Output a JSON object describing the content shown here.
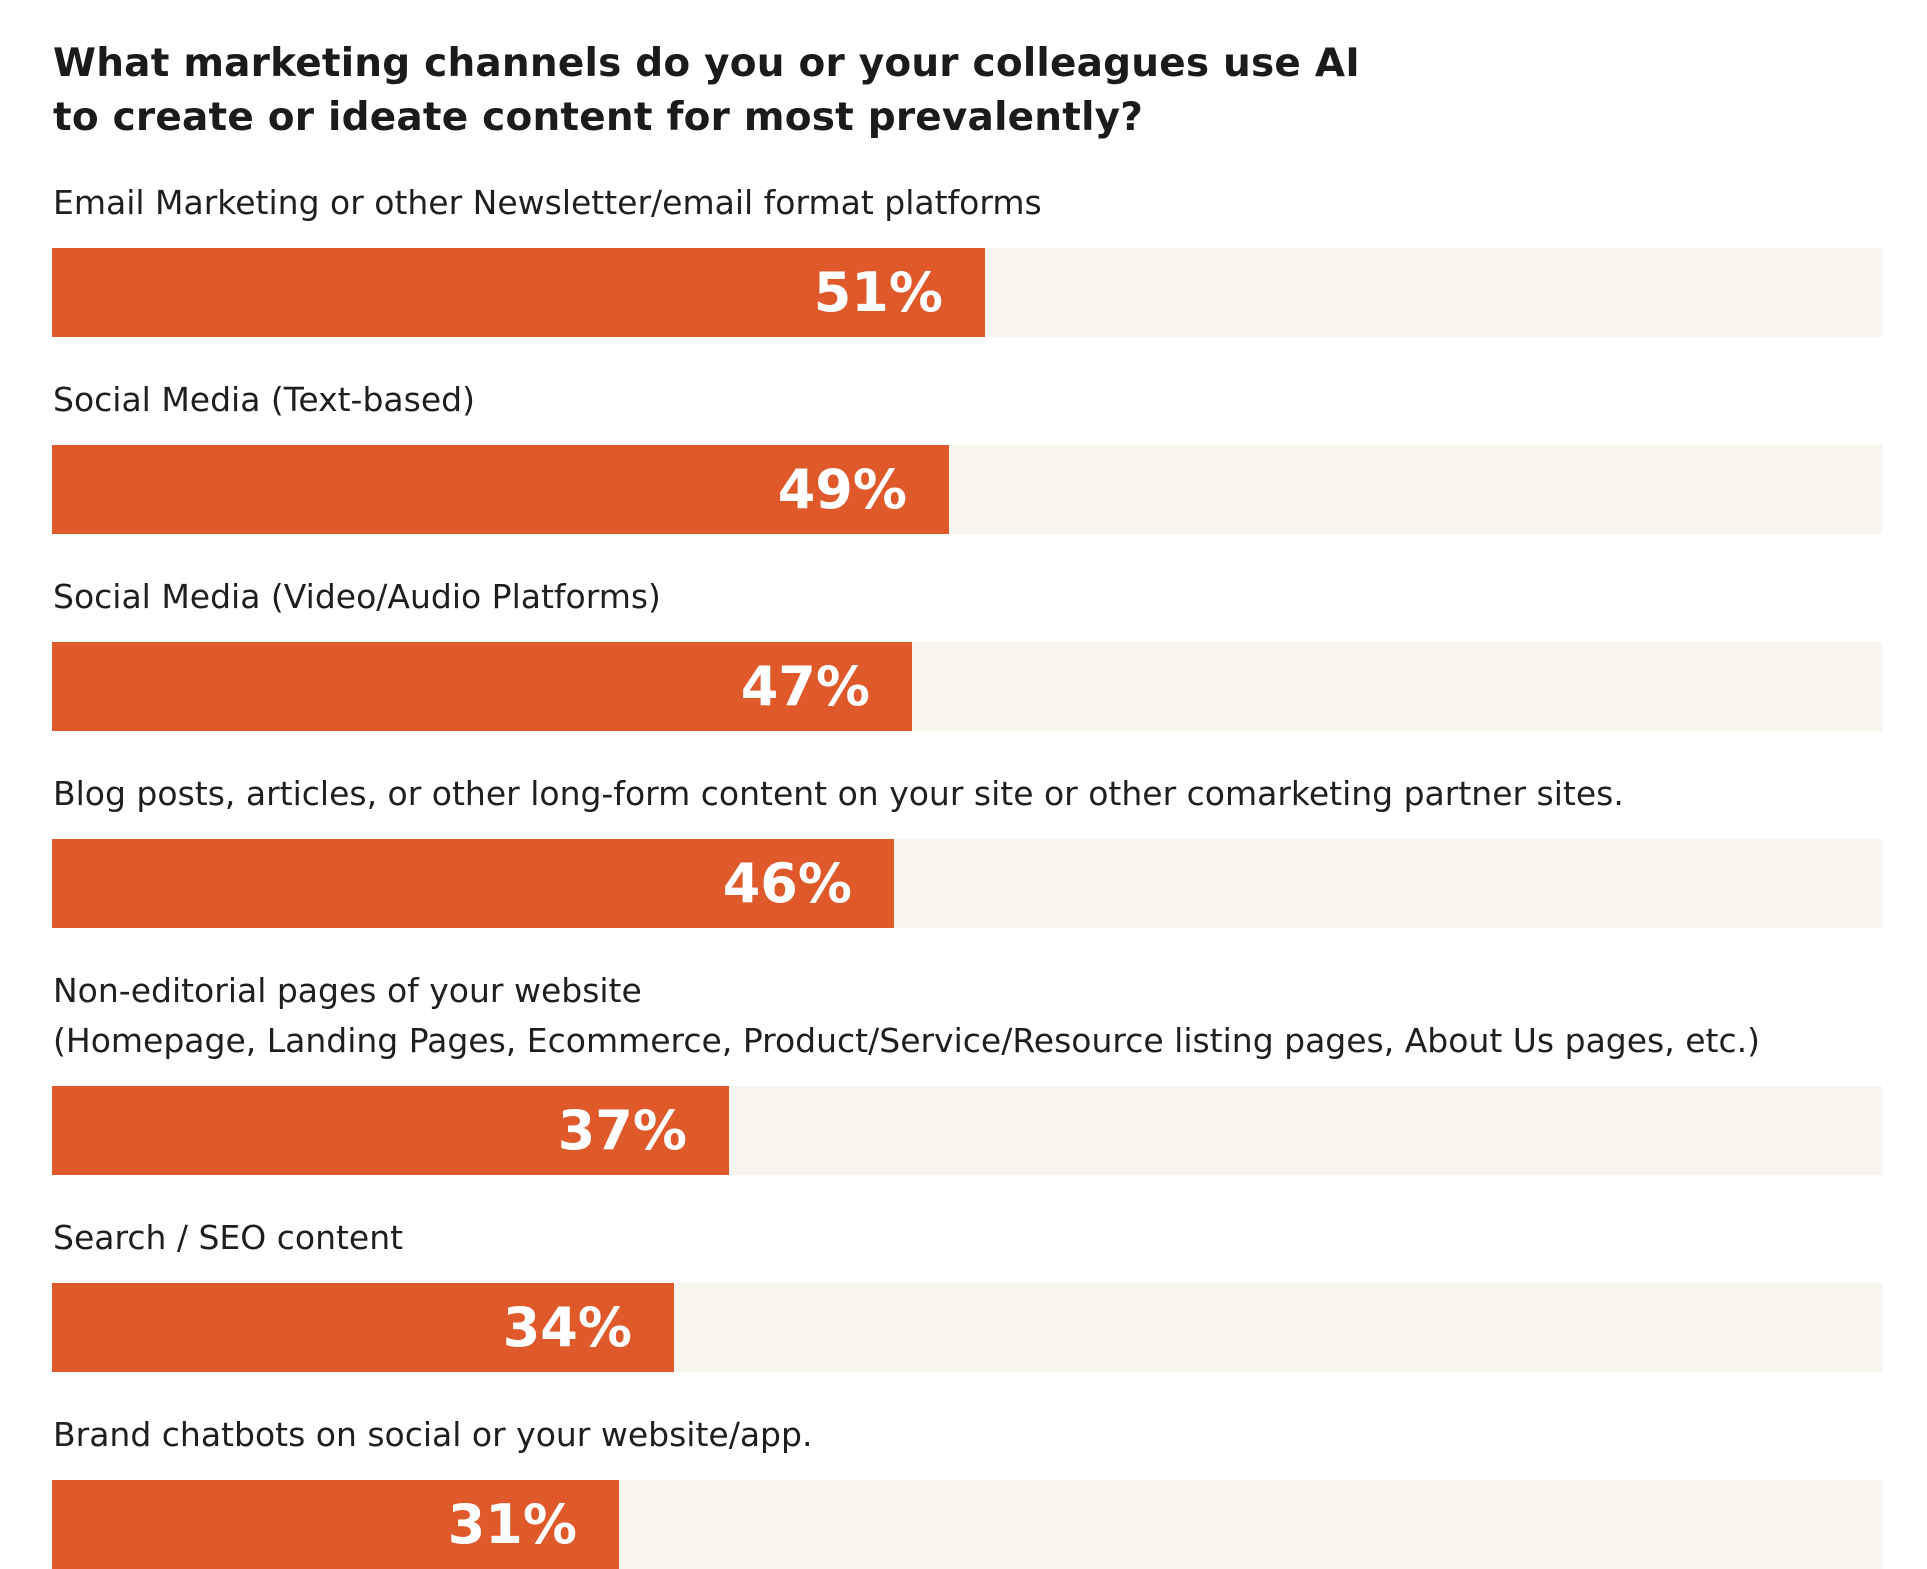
{
  "chart_data": {
    "type": "bar",
    "orientation": "horizontal",
    "title_lines": [
      "What marketing channels do you or your colleagues use AI",
      "to create or ideate content for most prevalently?"
    ],
    "value_suffix": "%",
    "xlim": [
      0,
      100
    ],
    "categories": [
      [
        "Email Marketing or other Newsletter/email format platforms"
      ],
      [
        "Social Media (Text-based)"
      ],
      [
        "Social Media (Video/Audio Platforms)"
      ],
      [
        "Blog posts, articles, or other long-form content on your site or other comarketing partner sites."
      ],
      [
        "Non-editorial pages of your website",
        "(Homepage, Landing Pages, Ecommerce, Product/Service/Resource listing pages, About Us pages, etc.)"
      ],
      [
        "Search / SEO content"
      ],
      [
        "Brand chatbots on social or your website/app."
      ]
    ],
    "values": [
      51,
      49,
      47,
      46,
      37,
      34,
      31
    ],
    "value_labels": [
      "51%",
      "49%",
      "47%",
      "46%",
      "37%",
      "34%",
      "31%"
    ],
    "colors": {
      "bar": "#e0592b",
      "track": "#f8f5ee",
      "value_text": "#ffffff",
      "label_text": "#1f1f1f"
    }
  }
}
